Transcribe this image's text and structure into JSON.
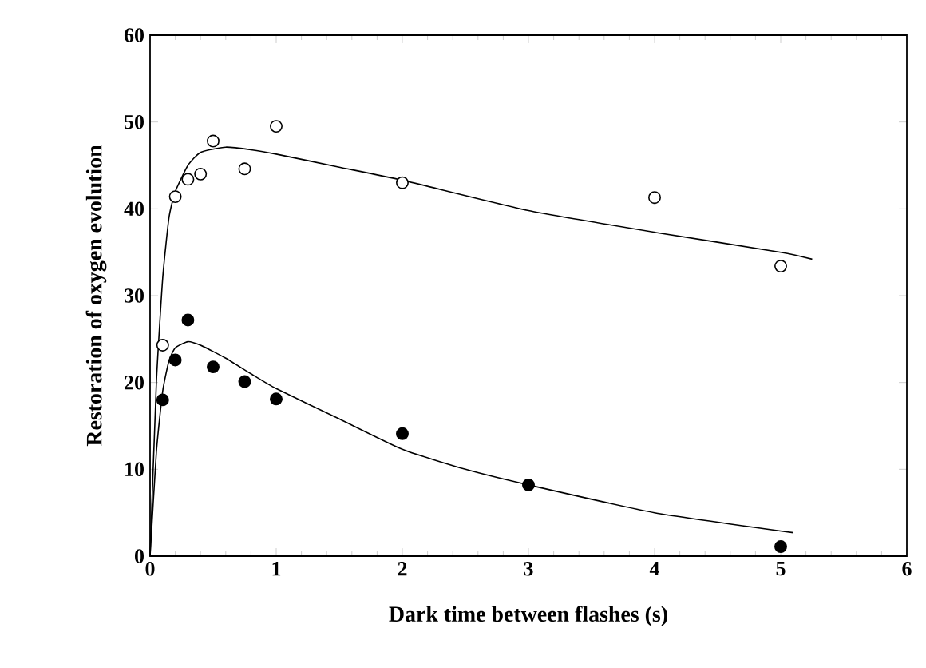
{
  "chart_data": {
    "type": "scatter",
    "xlabel": "Dark time between flashes (s)",
    "ylabel": "Restoration of oxygen evolution",
    "xlim": [
      0,
      6
    ],
    "ylim": [
      0,
      60
    ],
    "xticks": [
      0,
      1,
      2,
      3,
      4,
      5,
      6
    ],
    "yticks": [
      0,
      10,
      20,
      30,
      40,
      50,
      60
    ],
    "grid": false,
    "series": [
      {
        "marker": "circle",
        "color": "#ffffff",
        "x": [
          0.1,
          0.2,
          0.3,
          0.4,
          0.5,
          0.75,
          1,
          2,
          4,
          5
        ],
        "values": [
          24.3,
          41.4,
          43.4,
          44,
          47.8,
          44.6,
          49.5,
          43,
          41.3,
          33.4
        ]
      },
      {
        "marker": "circle",
        "color": "#000000",
        "x": [
          0.1,
          0.2,
          0.3,
          0.5,
          0.75,
          1,
          2,
          3,
          5
        ],
        "values": [
          18,
          22.6,
          27.2,
          21.8,
          20.1,
          18.1,
          14.1,
          8.2,
          1.1
        ]
      },
      {
        "type": "line",
        "marker": "none",
        "color": "#000000",
        "x": [
          0,
          0.05,
          0.1,
          0.15,
          0.2,
          0.3,
          0.4,
          0.6,
          0.8,
          1,
          1.5,
          2,
          3,
          4,
          5,
          5.25
        ],
        "values": [
          0,
          20,
          32,
          39,
          42,
          45,
          46.5,
          47.1,
          46.8,
          46.3,
          44.8,
          43.3,
          39.8,
          37.3,
          35,
          34.2
        ]
      },
      {
        "type": "line",
        "marker": "none",
        "color": "#000000",
        "x": [
          0,
          0.05,
          0.1,
          0.15,
          0.2,
          0.3,
          0.4,
          0.6,
          0.8,
          1,
          1.5,
          2,
          2.5,
          3,
          4,
          5.1
        ],
        "values": [
          0,
          12,
          19,
          22.5,
          24,
          24.7,
          24.3,
          22.8,
          21,
          19.3,
          15.8,
          12.3,
          10,
          8.2,
          5,
          2.7
        ]
      }
    ]
  }
}
